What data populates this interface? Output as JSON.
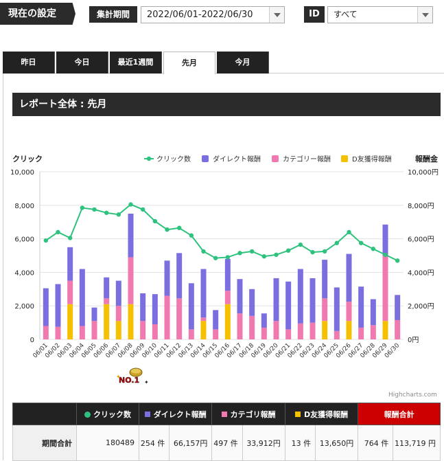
{
  "settings": {
    "current_label": "現在の設定",
    "period_label": "集計期間",
    "period_value": "2022/06/01-2022/06/30",
    "id_label": "ID",
    "id_value": "すべて"
  },
  "tabs": [
    {
      "label": "昨日",
      "active": false
    },
    {
      "label": "今日",
      "active": false
    },
    {
      "label": "最近1週間",
      "active": false
    },
    {
      "label": "先月",
      "active": true
    },
    {
      "label": "今月",
      "active": false
    }
  ],
  "report_title": "レポート全体 : 先月",
  "badge_text": "NO.1",
  "credits": "Highcharts.com",
  "chart_data": {
    "type": "bar",
    "left_axis_title": "クリック",
    "right_axis_title": "報酬金",
    "left_ticks": [
      "0",
      "2,000",
      "4,000",
      "6,000",
      "8,000",
      "10,000"
    ],
    "right_ticks": [
      "0円",
      "2,000円",
      "4,000円",
      "6,000円",
      "8,000円",
      "10,000円"
    ],
    "ylim": [
      0,
      10000
    ],
    "categories": [
      "06/01",
      "06/02",
      "06/03",
      "06/04",
      "06/05",
      "06/06",
      "06/07",
      "06/08",
      "06/09",
      "06/10",
      "06/11",
      "06/12",
      "06/13",
      "06/14",
      "06/15",
      "06/16",
      "06/17",
      "06/18",
      "06/19",
      "06/20",
      "06/21",
      "06/22",
      "06/23",
      "06/24",
      "06/25",
      "06/26",
      "06/27",
      "06/28",
      "06/29",
      "06/30"
    ],
    "legend": [
      {
        "name": "クリック数",
        "color": "#2ec27e",
        "kind": "line"
      },
      {
        "name": "ダイレクト報酬",
        "color": "#7b6fe0",
        "kind": "bar"
      },
      {
        "name": "カテゴリー報酬",
        "color": "#f07ab0",
        "kind": "bar"
      },
      {
        "name": "D友獲得報酬",
        "color": "#f5c000",
        "kind": "bar"
      }
    ],
    "series": [
      {
        "name": "クリック数",
        "values": [
          5900,
          6400,
          6050,
          7850,
          7750,
          7550,
          7450,
          8050,
          7750,
          7050,
          6550,
          6650,
          6200,
          5250,
          4850,
          4900,
          5150,
          5250,
          4950,
          5050,
          5300,
          5650,
          5200,
          5250,
          5750,
          6400,
          5750,
          5400,
          5050,
          4700
        ]
      },
      {
        "name": "ダイレクト報酬",
        "values": [
          2250,
          2550,
          2000,
          3400,
          800,
          1250,
          1500,
          2600,
          1650,
          1800,
          2100,
          2700,
          2750,
          2900,
          1150,
          1900,
          2050,
          1600,
          850,
          2550,
          2850,
          3250,
          2650,
          2300,
          2600,
          2850,
          2450,
          1550,
          1850,
          1500
        ]
      },
      {
        "name": "カテゴリー報酬",
        "values": [
          800,
          750,
          1400,
          800,
          1100,
          350,
          900,
          2800,
          1100,
          900,
          2600,
          2450,
          600,
          200,
          600,
          800,
          1550,
          1400,
          700,
          1100,
          600,
          950,
          1000,
          1350,
          500,
          1150,
          700,
          850,
          3900,
          1150
        ]
      },
      {
        "name": "D友獲得報酬",
        "values": [
          0,
          0,
          2100,
          0,
          0,
          2100,
          1100,
          2100,
          0,
          0,
          0,
          0,
          0,
          1100,
          0,
          2100,
          0,
          0,
          0,
          0,
          0,
          0,
          0,
          1100,
          0,
          1100,
          0,
          0,
          1100,
          0
        ]
      }
    ]
  },
  "summary": {
    "headers": [
      "クリック数",
      "ダイレクト報酬",
      "カテゴリ報酬",
      "D友獲得報酬",
      "報酬合計"
    ],
    "row_label": "期間合計",
    "clicks": "180489",
    "direct_count": "254 件",
    "direct_amount": "66,157円",
    "category_count": "497 件",
    "category_amount": "33,912円",
    "dfriend_count": "13 件",
    "dfriend_amount": "13,650円",
    "total_count": "764 件",
    "total_amount": "113,719 円"
  }
}
